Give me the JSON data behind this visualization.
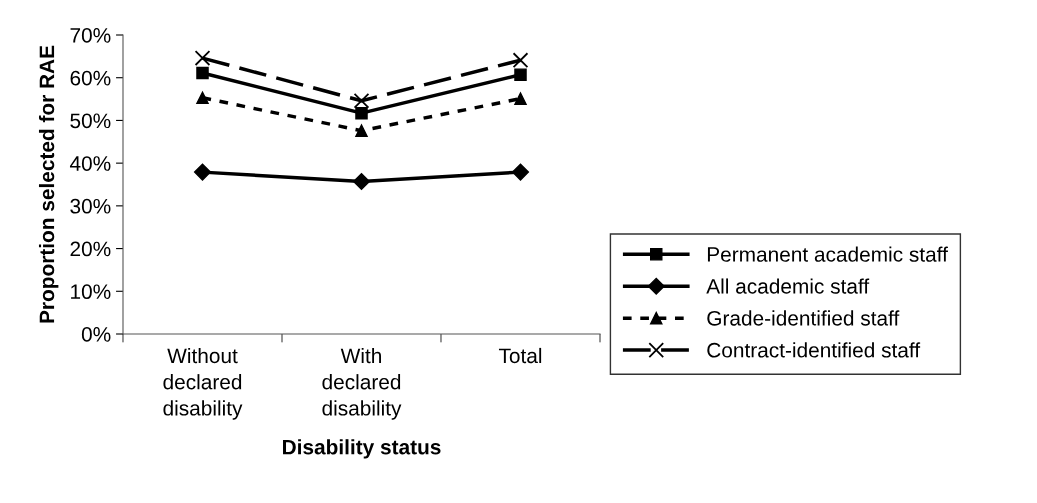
{
  "chart_data": {
    "type": "line",
    "xlabel": "Disability status",
    "ylabel": "Proportion selected for RAE",
    "categories": [
      "Without\ndeclared\ndisability",
      "With\ndeclared\ndisability",
      "Total"
    ],
    "ylim": [
      0,
      70
    ],
    "yticks": [
      {
        "value": 0,
        "label": "0%"
      },
      {
        "value": 10,
        "label": "10%"
      },
      {
        "value": 20,
        "label": "20%"
      },
      {
        "value": 30,
        "label": "30%"
      },
      {
        "value": 40,
        "label": "40%"
      },
      {
        "value": 50,
        "label": "50%"
      },
      {
        "value": 60,
        "label": "60%"
      },
      {
        "value": 70,
        "label": "70%"
      }
    ],
    "grid": false,
    "legend": "right",
    "series": [
      {
        "name": "Permanent academic staff",
        "color": "#000000",
        "values": [
          61.1,
          51.7,
          60.7
        ],
        "marker": "square",
        "line_style": "solid"
      },
      {
        "name": "All academic staff",
        "color": "#000000",
        "values": [
          37.9,
          35.7,
          37.9
        ],
        "marker": "diamond",
        "line_style": "solid"
      },
      {
        "name": "Grade-identified staff",
        "color": "#000000",
        "values": [
          55.3,
          47.6,
          55.1
        ],
        "marker": "triangle",
        "line_style": "dotted"
      },
      {
        "name": "Contract-identified staff",
        "color": "#000000",
        "values": [
          64.6,
          54.6,
          64.1
        ],
        "marker": "cross",
        "line_style": "dashed"
      }
    ]
  }
}
